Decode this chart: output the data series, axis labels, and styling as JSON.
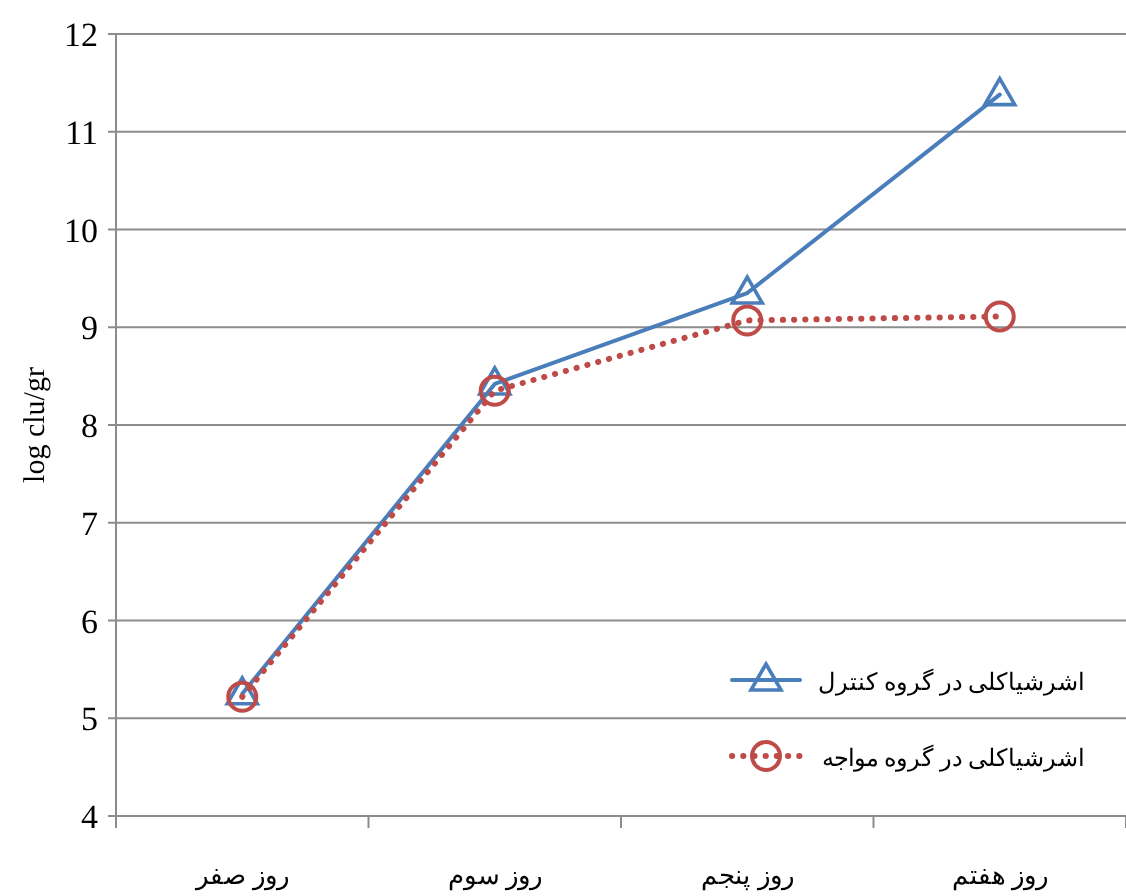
{
  "chart_data": {
    "type": "line",
    "ylabel": "log clu/gr",
    "categories": [
      "روز صفر",
      "روز سوم",
      "روز پنجم",
      "روز هفتم"
    ],
    "series": [
      {
        "name": "اشرشیاکلی در گروه کنترل",
        "color": "#4a7ebb",
        "values": [
          5.25,
          8.42,
          9.35,
          11.38
        ],
        "marker": "triangle",
        "line_style": "solid"
      },
      {
        "name": "اشرشیاکلی در گروه مواجه",
        "color": "#be4b48",
        "values": [
          5.22,
          8.35,
          9.07,
          9.11
        ],
        "marker": "circle",
        "line_style": "dotted"
      }
    ],
    "ylim": [
      4,
      12
    ],
    "yticks": [
      4,
      5,
      6,
      7,
      8,
      9,
      10,
      11,
      12
    ],
    "grid": "y",
    "legend": "bottom right"
  }
}
